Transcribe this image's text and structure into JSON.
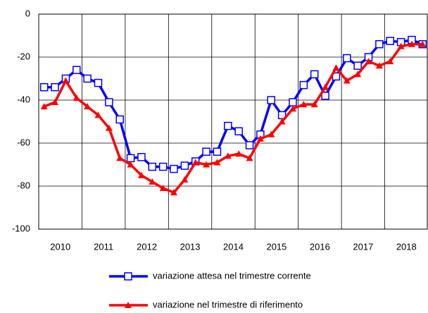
{
  "chart_data": {
    "type": "line",
    "categories": [
      "2010",
      null,
      null,
      null,
      "2011",
      null,
      null,
      null,
      "2012",
      null,
      null,
      null,
      "2013",
      null,
      null,
      null,
      "2014",
      null,
      null,
      null,
      "2015",
      null,
      null,
      null,
      "2016",
      null,
      null,
      null,
      "2017",
      null,
      null,
      null,
      "2018",
      null,
      null,
      null
    ],
    "series": [
      {
        "name": "variazione attesa nel trimestre corrente",
        "color": "#0000ff",
        "marker": "square",
        "values": [
          -34,
          -34,
          -30,
          -26,
          -30,
          -32,
          -41,
          -49,
          -67,
          -66.5,
          -71,
          -71,
          -72,
          -70.5,
          -68.5,
          -64,
          -64,
          -52,
          -54.5,
          -61,
          -56,
          -40,
          -47,
          -41,
          -33,
          -28,
          -38,
          -29,
          -20.5,
          -24,
          -20,
          -14,
          -12.5,
          -13,
          -12,
          -14
        ]
      },
      {
        "name": "variazione nel trimestre di riferimento",
        "color": "#ff0000",
        "marker": "triangle",
        "values": [
          -43,
          -41,
          -31,
          -39,
          -43,
          -47,
          -53,
          -67,
          -70,
          -75,
          -78,
          -81,
          -83,
          -77,
          -69,
          -70,
          -69,
          -66,
          -65,
          -67,
          -58,
          -56,
          -50,
          -44,
          -42,
          -42,
          -34,
          -25,
          -31,
          -28,
          -22,
          -24,
          -22,
          -15,
          -14,
          -14
        ]
      }
    ],
    "ylim": [
      -100,
      0
    ],
    "yticks": [
      -100,
      -80,
      -60,
      -40,
      -20,
      0
    ],
    "grid": true
  }
}
